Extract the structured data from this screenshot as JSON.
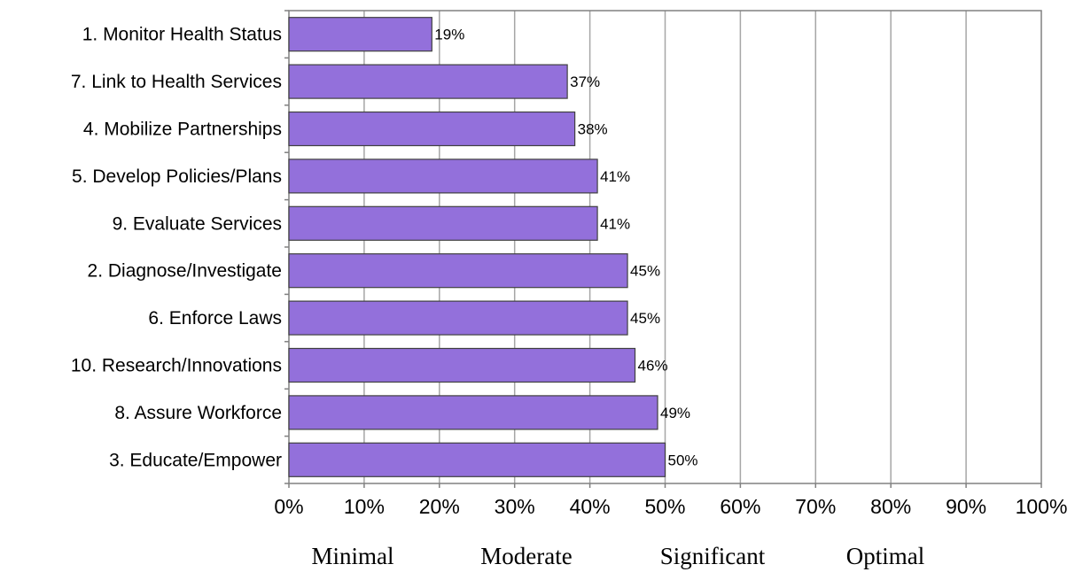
{
  "chart_data": {
    "type": "bar",
    "orientation": "horizontal",
    "categories": [
      "1.  Monitor Health Status",
      "7.  Link to Health Services",
      "4.  Mobilize Partnerships",
      "5.  Develop Policies/Plans",
      "9.  Evaluate Services",
      "2.  Diagnose/Investigate",
      "6.  Enforce Laws",
      "10.  Research/Innovations",
      "8.  Assure Workforce",
      "3.  Educate/Empower"
    ],
    "values": [
      19,
      37,
      38,
      41,
      41,
      45,
      45,
      46,
      49,
      50
    ],
    "data_labels": [
      "19%",
      "37%",
      "38%",
      "41%",
      "41%",
      "45%",
      "45%",
      "46%",
      "49%",
      "50%"
    ],
    "xlim": [
      0,
      100
    ],
    "x_ticks": [
      0,
      10,
      20,
      30,
      40,
      50,
      60,
      70,
      80,
      90,
      100
    ],
    "x_tick_labels": [
      "0%",
      "10%",
      "20%",
      "30%",
      "40%",
      "50%",
      "60%",
      "70%",
      "80%",
      "90%",
      "100%"
    ],
    "grid": "vertical",
    "legend": "none",
    "bar_color": "#9370db",
    "bar_edge_color": "#404040",
    "band_labels": [
      "Minimal",
      "Moderate",
      "Significant",
      "Optimal"
    ]
  }
}
